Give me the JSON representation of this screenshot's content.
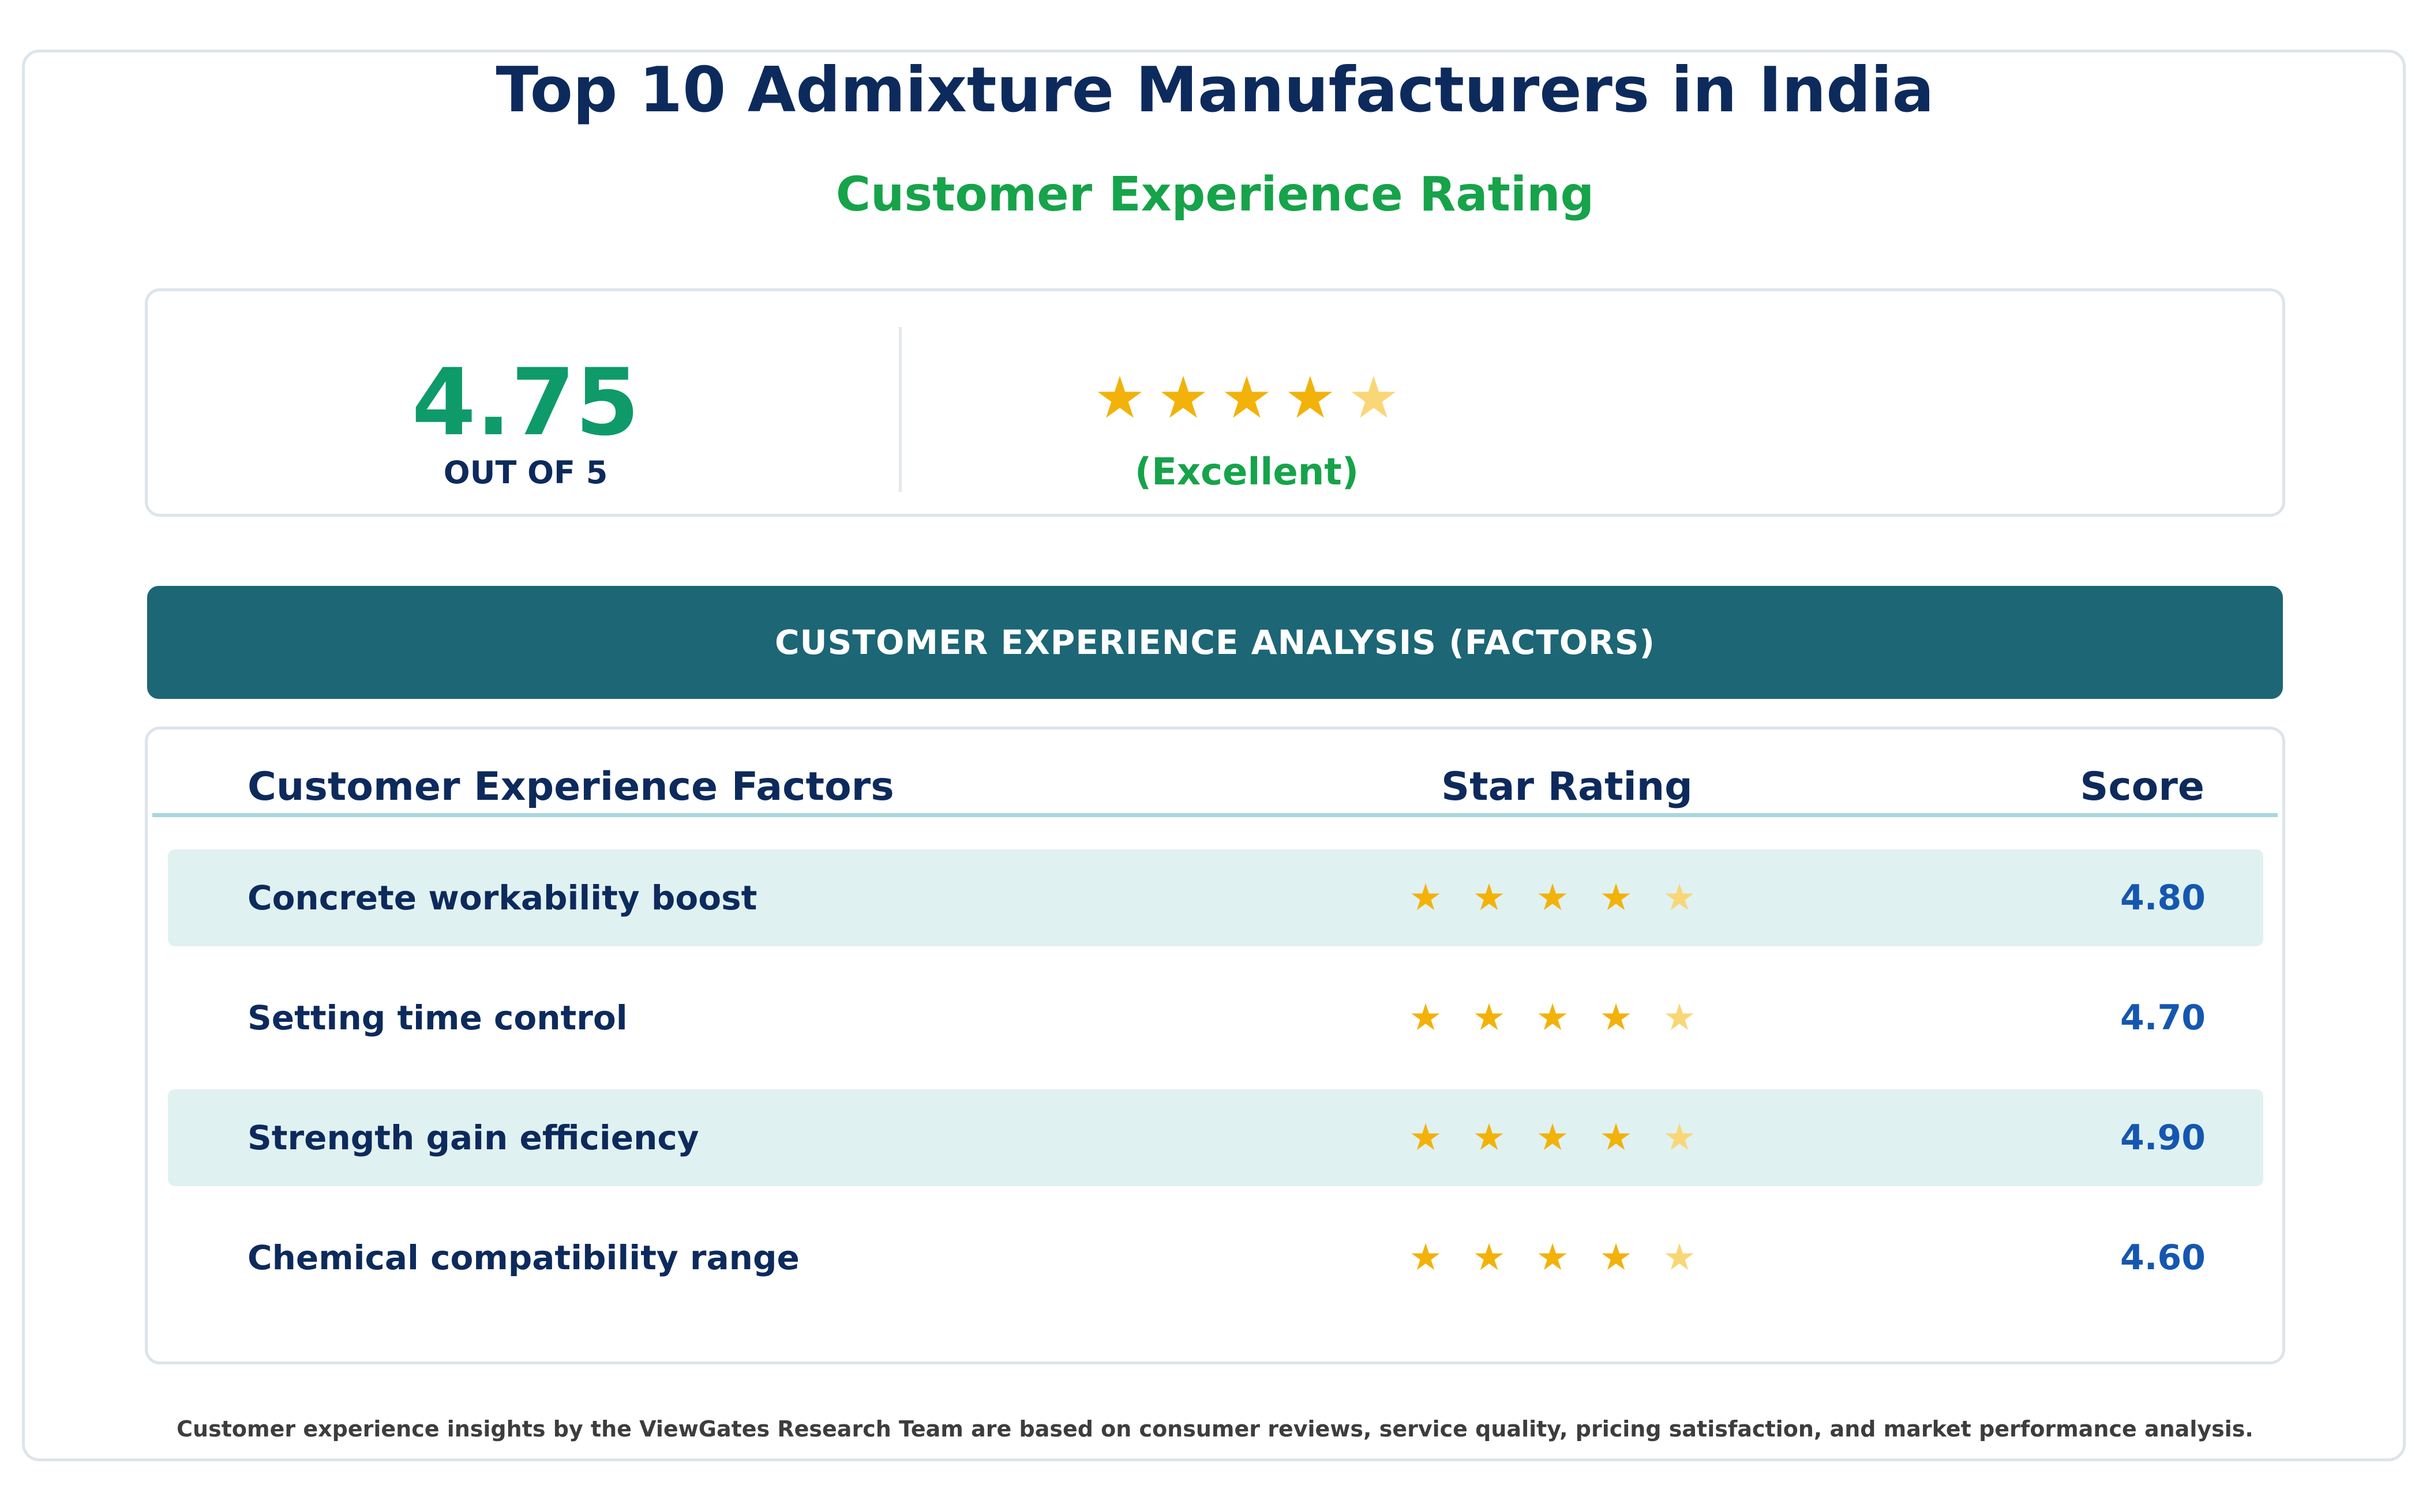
{
  "header": {
    "title": "Top 10 Admixture Manufacturers in India",
    "subtitle": "Customer Experience Rating"
  },
  "summary": {
    "score": "4.75",
    "out_of_label": "OUT OF 5",
    "stars_value": 4.75,
    "verdict": "(Excellent)"
  },
  "banner": {
    "label": "CUSTOMER EXPERIENCE ANALYSIS (FACTORS)"
  },
  "table": {
    "columns": {
      "factor": "Customer Experience Factors",
      "stars": "Star Rating",
      "score": "Score"
    },
    "rows": [
      {
        "factor": "Concrete workability boost",
        "stars_value": 4.8,
        "score": "4.80"
      },
      {
        "factor": "Setting time control",
        "stars_value": 4.7,
        "score": "4.70"
      },
      {
        "factor": "Strength gain efficiency",
        "stars_value": 4.9,
        "score": "4.90"
      },
      {
        "factor": "Chemical compatibility range",
        "stars_value": 4.6,
        "score": "4.60"
      }
    ]
  },
  "footnote": "Customer experience insights by the ViewGates Research Team are based on consumer reviews, service quality, pricing satisfaction, and market performance analysis.",
  "colors": {
    "navy": "#0d2a5c",
    "green": "#16a34a",
    "score_green": "#0f9a6a",
    "teal_banner": "#1c6675",
    "row_shade": "#e0f1f1",
    "star_full": "#f2b20a",
    "star_partial": "#f9d676",
    "score_blue": "#1557b0"
  },
  "icons": {
    "star": "star-icon",
    "partial_star": "star-partial-icon"
  }
}
